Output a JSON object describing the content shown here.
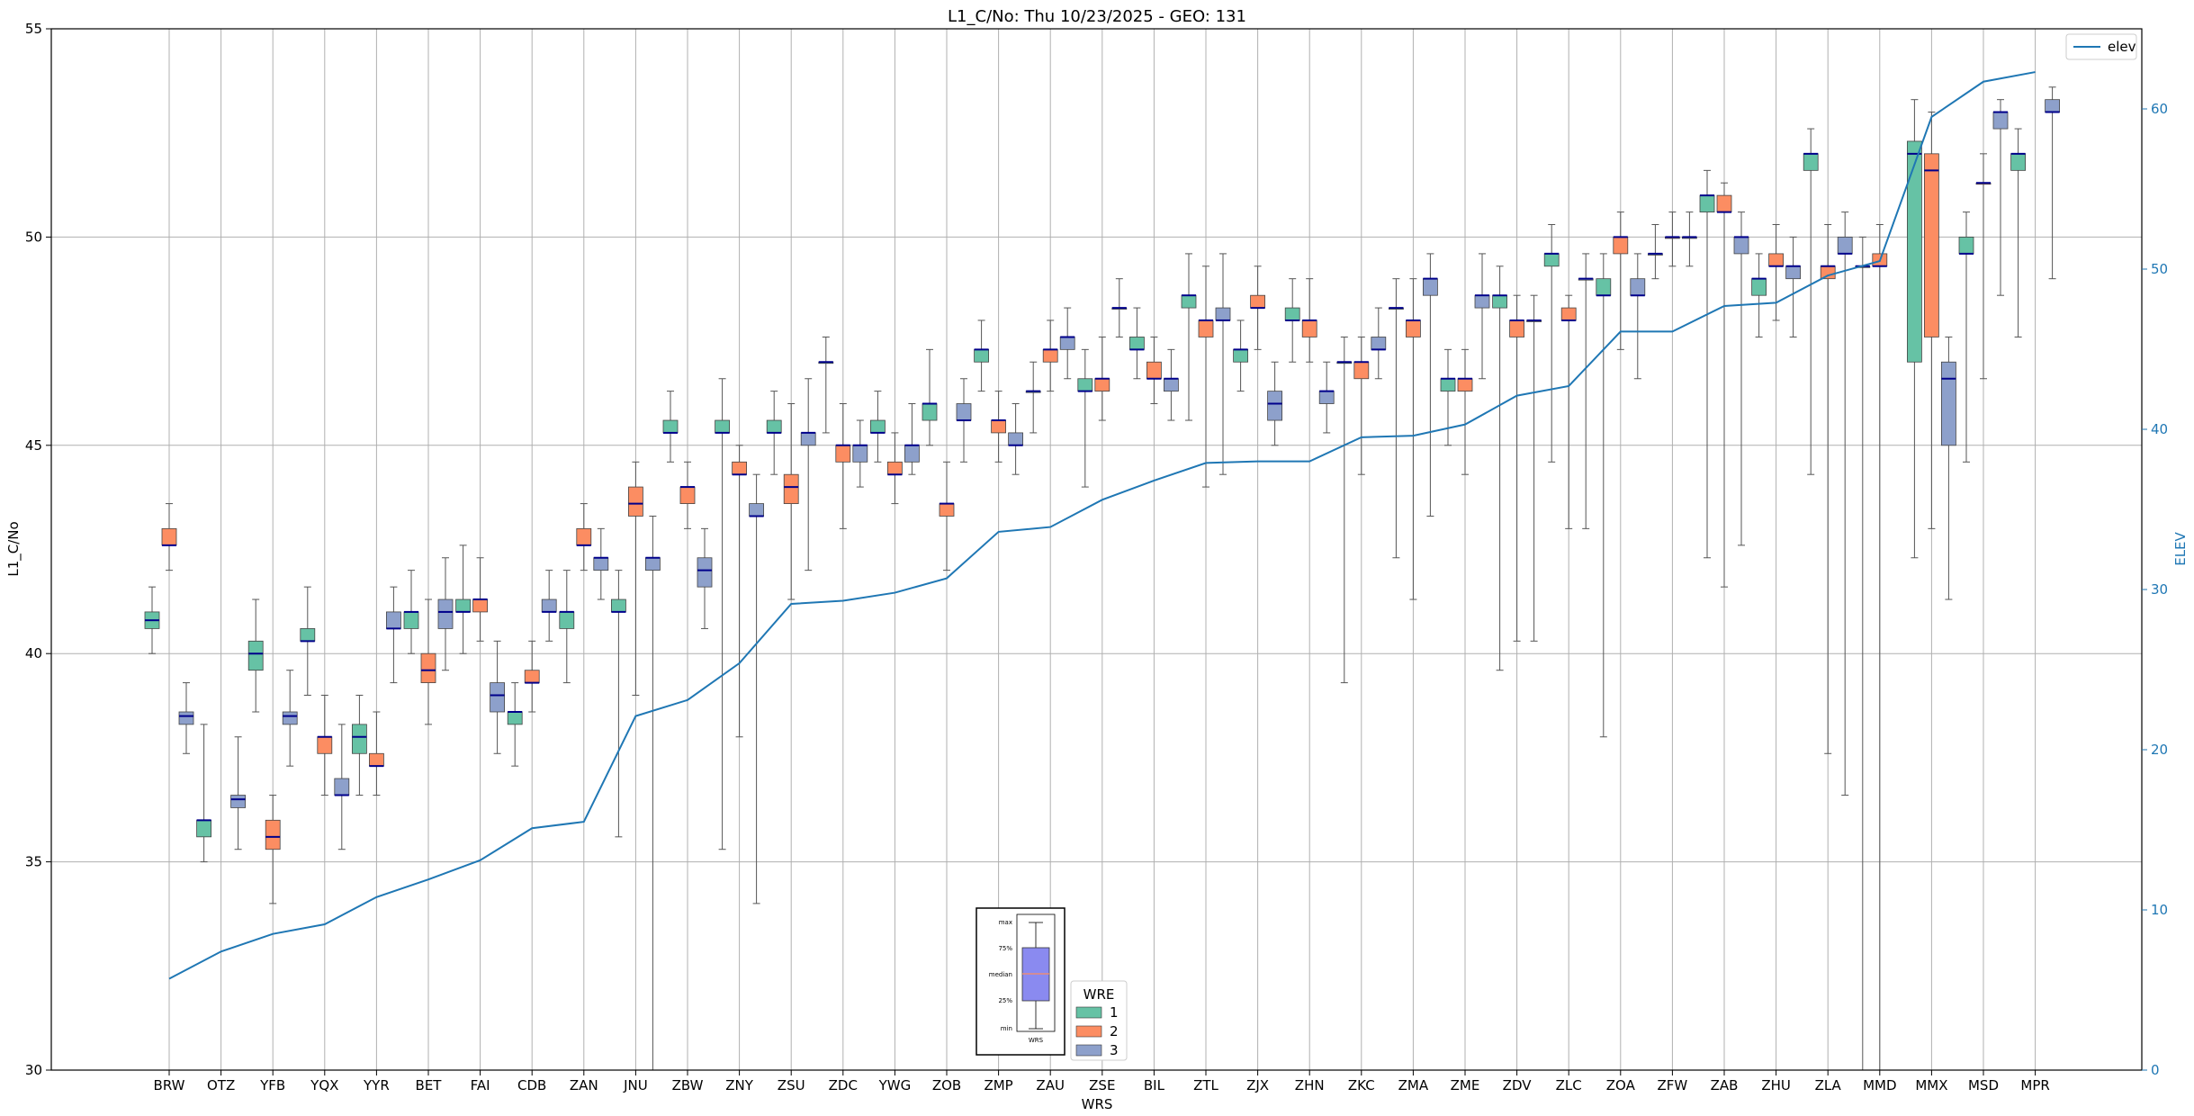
{
  "chart_data": {
    "type": "box",
    "title": "L1_C/No: Thu 10/23/2025 - GEO: 131",
    "xlabel": "WRS",
    "ylabel": "L1_C/No",
    "y2label": "ELEV",
    "ylim": [
      30,
      55
    ],
    "y2lim": [
      0,
      65
    ],
    "yticks": [
      30,
      35,
      40,
      45,
      50,
      55
    ],
    "y2ticks": [
      0,
      10,
      20,
      30,
      40,
      50,
      60
    ],
    "grid": true,
    "colors": {
      "wre1": "#66c2a5",
      "wre2": "#fc8d62",
      "wre3": "#8da0cb",
      "median": "#00008b",
      "elev_line": "#1f77b4",
      "whisker": "#555555",
      "grid": "#b0b0b0"
    },
    "legend_elev": {
      "position": "top-right",
      "label": "elev"
    },
    "legend_wre": {
      "position": "bottom-center",
      "title": "WRE",
      "labels": [
        "1",
        "2",
        "3"
      ]
    },
    "key_box": {
      "labels": [
        "max",
        "75%",
        "median",
        "25%",
        "min"
      ],
      "caption": "WRS"
    },
    "stations": [
      "BRW",
      "OTZ",
      "YFB",
      "YQX",
      "YYR",
      "BET",
      "FAI",
      "CDB",
      "ZAN",
      "JNU",
      "ZBW",
      "ZNY",
      "ZSU",
      "ZDC",
      "YWG",
      "ZOB",
      "ZMP",
      "ZAU",
      "ZSE",
      "BIL",
      "ZTL",
      "ZJX",
      "ZHN",
      "ZKC",
      "ZMA",
      "ZME",
      "ZDV",
      "ZLC",
      "ZOA",
      "ZFW",
      "ZAB",
      "ZHU",
      "ZLA",
      "MMD",
      "MMX",
      "MSD",
      "MPR"
    ],
    "elev": [
      5.7,
      7.4,
      8.5,
      9.1,
      10.8,
      11.9,
      13.1,
      15.1,
      15.5,
      22.1,
      23.1,
      25.4,
      29.1,
      29.3,
      29.8,
      30.7,
      33.6,
      33.9,
      35.6,
      36.8,
      37.9,
      38.0,
      38.0,
      39.5,
      39.6,
      40.3,
      42.1,
      42.7,
      46.1,
      46.1,
      47.7,
      47.9,
      49.6,
      50.5,
      59.5,
      61.7,
      62.3
    ],
    "boxes": [
      {
        "station": "BRW",
        "wre": 1,
        "min": 40.0,
        "q1": 40.6,
        "med": 40.8,
        "q3": 41.0,
        "max": 41.6
      },
      {
        "station": "BRW",
        "wre": 2,
        "min": 42.0,
        "q1": 42.6,
        "med": 42.6,
        "q3": 43.0,
        "max": 43.6
      },
      {
        "station": "BRW",
        "wre": 3,
        "min": 37.6,
        "q1": 38.3,
        "med": 38.5,
        "q3": 38.6,
        "max": 39.3
      },
      {
        "station": "OTZ",
        "wre": 1,
        "min": 35.0,
        "q1": 35.6,
        "med": 36.0,
        "q3": 36.0,
        "max": 38.3
      },
      {
        "station": "OTZ",
        "wre": 3,
        "min": 35.3,
        "q1": 36.3,
        "med": 36.5,
        "q3": 36.6,
        "max": 38.0
      },
      {
        "station": "YFB",
        "wre": 1,
        "min": 38.6,
        "q1": 39.6,
        "med": 40.0,
        "q3": 40.3,
        "max": 41.3
      },
      {
        "station": "YFB",
        "wre": 2,
        "min": 34.0,
        "q1": 35.3,
        "med": 35.6,
        "q3": 36.0,
        "max": 36.6
      },
      {
        "station": "YFB",
        "wre": 3,
        "min": 37.3,
        "q1": 38.3,
        "med": 38.5,
        "q3": 38.6,
        "max": 39.6
      },
      {
        "station": "YQX",
        "wre": 1,
        "min": 39.0,
        "q1": 40.3,
        "med": 40.3,
        "q3": 40.6,
        "max": 41.6
      },
      {
        "station": "YQX",
        "wre": 2,
        "min": 36.6,
        "q1": 37.6,
        "med": 38.0,
        "q3": 38.0,
        "max": 39.0
      },
      {
        "station": "YQX",
        "wre": 3,
        "min": 35.3,
        "q1": 36.6,
        "med": 36.6,
        "q3": 37.0,
        "max": 38.3
      },
      {
        "station": "YYR",
        "wre": 1,
        "min": 36.6,
        "q1": 37.6,
        "med": 38.0,
        "q3": 38.3,
        "max": 39.0
      },
      {
        "station": "YYR",
        "wre": 2,
        "min": 36.6,
        "q1": 37.3,
        "med": 37.3,
        "q3": 37.6,
        "max": 38.6
      },
      {
        "station": "YYR",
        "wre": 3,
        "min": 39.3,
        "q1": 40.6,
        "med": 40.6,
        "q3": 41.0,
        "max": 41.6
      },
      {
        "station": "BET",
        "wre": 1,
        "min": 40.0,
        "q1": 40.6,
        "med": 41.0,
        "q3": 41.0,
        "max": 42.0
      },
      {
        "station": "BET",
        "wre": 2,
        "min": 38.3,
        "q1": 39.3,
        "med": 39.6,
        "q3": 40.0,
        "max": 41.3
      },
      {
        "station": "BET",
        "wre": 3,
        "min": 39.6,
        "q1": 40.6,
        "med": 41.0,
        "q3": 41.3,
        "max": 42.3
      },
      {
        "station": "FAI",
        "wre": 1,
        "min": 40.0,
        "q1": 41.0,
        "med": 41.0,
        "q3": 41.3,
        "max": 42.6
      },
      {
        "station": "FAI",
        "wre": 2,
        "min": 40.3,
        "q1": 41.0,
        "med": 41.3,
        "q3": 41.3,
        "max": 42.3
      },
      {
        "station": "FAI",
        "wre": 3,
        "min": 37.6,
        "q1": 38.6,
        "med": 39.0,
        "q3": 39.3,
        "max": 40.3
      },
      {
        "station": "CDB",
        "wre": 1,
        "min": 37.3,
        "q1": 38.3,
        "med": 38.6,
        "q3": 38.6,
        "max": 39.3
      },
      {
        "station": "CDB",
        "wre": 2,
        "min": 38.6,
        "q1": 39.3,
        "med": 39.3,
        "q3": 39.6,
        "max": 40.3
      },
      {
        "station": "CDB",
        "wre": 3,
        "min": 40.3,
        "q1": 41.0,
        "med": 41.0,
        "q3": 41.3,
        "max": 42.0
      },
      {
        "station": "ZAN",
        "wre": 1,
        "min": 39.3,
        "q1": 40.6,
        "med": 41.0,
        "q3": 41.0,
        "max": 42.0
      },
      {
        "station": "ZAN",
        "wre": 2,
        "min": 42.0,
        "q1": 42.6,
        "med": 42.6,
        "q3": 43.0,
        "max": 43.6
      },
      {
        "station": "ZAN",
        "wre": 3,
        "min": 41.3,
        "q1": 42.0,
        "med": 42.3,
        "q3": 42.3,
        "max": 43.0
      },
      {
        "station": "JNU",
        "wre": 1,
        "min": 35.6,
        "q1": 41.0,
        "med": 41.0,
        "q3": 41.3,
        "max": 42.0
      },
      {
        "station": "JNU",
        "wre": 2,
        "min": 39.0,
        "q1": 43.3,
        "med": 43.6,
        "q3": 44.0,
        "max": 44.6
      },
      {
        "station": "JNU",
        "wre": 3,
        "min": 30.0,
        "q1": 42.0,
        "med": 42.3,
        "q3": 42.3,
        "max": 43.3
      },
      {
        "station": "ZBW",
        "wre": 1,
        "min": 44.6,
        "q1": 45.3,
        "med": 45.3,
        "q3": 45.6,
        "max": 46.3
      },
      {
        "station": "ZBW",
        "wre": 2,
        "min": 43.0,
        "q1": 43.6,
        "med": 44.0,
        "q3": 44.0,
        "max": 44.6
      },
      {
        "station": "ZBW",
        "wre": 3,
        "min": 40.6,
        "q1": 41.6,
        "med": 42.0,
        "q3": 42.3,
        "max": 43.0
      },
      {
        "station": "ZNY",
        "wre": 1,
        "min": 35.3,
        "q1": 45.3,
        "med": 45.3,
        "q3": 45.6,
        "max": 46.6
      },
      {
        "station": "ZNY",
        "wre": 2,
        "min": 38.0,
        "q1": 44.3,
        "med": 44.3,
        "q3": 44.6,
        "max": 45.0
      },
      {
        "station": "ZNY",
        "wre": 3,
        "min": 34.0,
        "q1": 43.3,
        "med": 43.3,
        "q3": 43.6,
        "max": 44.3
      },
      {
        "station": "ZSU",
        "wre": 1,
        "min": 44.3,
        "q1": 45.3,
        "med": 45.3,
        "q3": 45.6,
        "max": 46.3
      },
      {
        "station": "ZSU",
        "wre": 2,
        "min": 41.3,
        "q1": 43.6,
        "med": 44.0,
        "q3": 44.3,
        "max": 46.0
      },
      {
        "station": "ZSU",
        "wre": 3,
        "min": 42.0,
        "q1": 45.0,
        "med": 45.3,
        "q3": 45.3,
        "max": 46.6
      },
      {
        "station": "ZDC",
        "wre": 1,
        "min": 45.3,
        "q1": 47.0,
        "med": 47.0,
        "q3": 47.0,
        "max": 47.6
      },
      {
        "station": "ZDC",
        "wre": 2,
        "min": 43.0,
        "q1": 44.6,
        "med": 45.0,
        "q3": 45.0,
        "max": 46.0
      },
      {
        "station": "ZDC",
        "wre": 3,
        "min": 44.0,
        "q1": 44.6,
        "med": 45.0,
        "q3": 45.0,
        "max": 45.6
      },
      {
        "station": "YWG",
        "wre": 1,
        "min": 44.6,
        "q1": 45.3,
        "med": 45.3,
        "q3": 45.6,
        "max": 46.3
      },
      {
        "station": "YWG",
        "wre": 2,
        "min": 43.6,
        "q1": 44.3,
        "med": 44.3,
        "q3": 44.6,
        "max": 45.3
      },
      {
        "station": "YWG",
        "wre": 3,
        "min": 44.3,
        "q1": 44.6,
        "med": 45.0,
        "q3": 45.0,
        "max": 46.0
      },
      {
        "station": "ZOB",
        "wre": 1,
        "min": 45.0,
        "q1": 45.6,
        "med": 46.0,
        "q3": 46.0,
        "max": 47.3
      },
      {
        "station": "ZOB",
        "wre": 2,
        "min": 42.0,
        "q1": 43.3,
        "med": 43.6,
        "q3": 43.6,
        "max": 44.6
      },
      {
        "station": "ZOB",
        "wre": 3,
        "min": 44.6,
        "q1": 45.6,
        "med": 45.6,
        "q3": 46.0,
        "max": 46.6
      },
      {
        "station": "ZMP",
        "wre": 1,
        "min": 46.3,
        "q1": 47.0,
        "med": 47.3,
        "q3": 47.3,
        "max": 48.0
      },
      {
        "station": "ZMP",
        "wre": 2,
        "min": 44.6,
        "q1": 45.3,
        "med": 45.6,
        "q3": 45.6,
        "max": 46.3
      },
      {
        "station": "ZMP",
        "wre": 3,
        "min": 44.3,
        "q1": 45.0,
        "med": 45.0,
        "q3": 45.3,
        "max": 46.0
      },
      {
        "station": "ZAU",
        "wre": 1,
        "min": 45.3,
        "q1": 46.3,
        "med": 46.3,
        "q3": 46.3,
        "max": 47.0
      },
      {
        "station": "ZAU",
        "wre": 2,
        "min": 46.3,
        "q1": 47.0,
        "med": 47.3,
        "q3": 47.3,
        "max": 48.0
      },
      {
        "station": "ZAU",
        "wre": 3,
        "min": 46.6,
        "q1": 47.3,
        "med": 47.6,
        "q3": 47.6,
        "max": 48.3
      },
      {
        "station": "ZSE",
        "wre": 1,
        "min": 44.0,
        "q1": 46.3,
        "med": 46.3,
        "q3": 46.6,
        "max": 47.3
      },
      {
        "station": "ZSE",
        "wre": 2,
        "min": 45.6,
        "q1": 46.3,
        "med": 46.6,
        "q3": 46.6,
        "max": 47.6
      },
      {
        "station": "ZSE",
        "wre": 3,
        "min": 47.6,
        "q1": 48.3,
        "med": 48.3,
        "q3": 48.3,
        "max": 49.0
      },
      {
        "station": "BIL",
        "wre": 1,
        "min": 46.6,
        "q1": 47.3,
        "med": 47.3,
        "q3": 47.6,
        "max": 48.3
      },
      {
        "station": "BIL",
        "wre": 2,
        "min": 46.0,
        "q1": 46.6,
        "med": 46.6,
        "q3": 47.0,
        "max": 47.6
      },
      {
        "station": "BIL",
        "wre": 3,
        "min": 45.6,
        "q1": 46.3,
        "med": 46.6,
        "q3": 46.6,
        "max": 47.3
      },
      {
        "station": "ZTL",
        "wre": 1,
        "min": 45.6,
        "q1": 48.3,
        "med": 48.6,
        "q3": 48.6,
        "max": 49.6
      },
      {
        "station": "ZTL",
        "wre": 2,
        "min": 44.0,
        "q1": 47.6,
        "med": 48.0,
        "q3": 48.0,
        "max": 49.3
      },
      {
        "station": "ZTL",
        "wre": 3,
        "min": 44.3,
        "q1": 48.0,
        "med": 48.0,
        "q3": 48.3,
        "max": 49.6
      },
      {
        "station": "ZJX",
        "wre": 1,
        "min": 46.3,
        "q1": 47.0,
        "med": 47.3,
        "q3": 47.3,
        "max": 48.0
      },
      {
        "station": "ZJX",
        "wre": 2,
        "min": 47.3,
        "q1": 48.3,
        "med": 48.3,
        "q3": 48.6,
        "max": 49.3
      },
      {
        "station": "ZJX",
        "wre": 3,
        "min": 45.0,
        "q1": 45.6,
        "med": 46.0,
        "q3": 46.3,
        "max": 47.0
      },
      {
        "station": "ZHN",
        "wre": 1,
        "min": 47.0,
        "q1": 48.0,
        "med": 48.0,
        "q3": 48.3,
        "max": 49.0
      },
      {
        "station": "ZHN",
        "wre": 2,
        "min": 47.0,
        "q1": 47.6,
        "med": 48.0,
        "q3": 48.0,
        "max": 49.0
      },
      {
        "station": "ZHN",
        "wre": 3,
        "min": 45.3,
        "q1": 46.0,
        "med": 46.3,
        "q3": 46.3,
        "max": 47.0
      },
      {
        "station": "ZKC",
        "wre": 1,
        "min": 39.3,
        "q1": 47.0,
        "med": 47.0,
        "q3": 47.0,
        "max": 47.6
      },
      {
        "station": "ZKC",
        "wre": 2,
        "min": 44.3,
        "q1": 46.6,
        "med": 47.0,
        "q3": 47.0,
        "max": 47.6
      },
      {
        "station": "ZKC",
        "wre": 3,
        "min": 46.6,
        "q1": 47.3,
        "med": 47.3,
        "q3": 47.6,
        "max": 48.3
      },
      {
        "station": "ZMA",
        "wre": 1,
        "min": 42.3,
        "q1": 48.3,
        "med": 48.3,
        "q3": 48.3,
        "max": 49.0
      },
      {
        "station": "ZMA",
        "wre": 2,
        "min": 41.3,
        "q1": 47.6,
        "med": 48.0,
        "q3": 48.0,
        "max": 49.0
      },
      {
        "station": "ZMA",
        "wre": 3,
        "min": 43.3,
        "q1": 48.6,
        "med": 49.0,
        "q3": 49.0,
        "max": 49.6
      },
      {
        "station": "ZME",
        "wre": 1,
        "min": 45.0,
        "q1": 46.3,
        "med": 46.6,
        "q3": 46.6,
        "max": 47.3
      },
      {
        "station": "ZME",
        "wre": 2,
        "min": 44.3,
        "q1": 46.3,
        "med": 46.6,
        "q3": 46.6,
        "max": 47.3
      },
      {
        "station": "ZME",
        "wre": 3,
        "min": 46.6,
        "q1": 48.3,
        "med": 48.6,
        "q3": 48.6,
        "max": 49.6
      },
      {
        "station": "ZDV",
        "wre": 1,
        "min": 39.6,
        "q1": 48.3,
        "med": 48.6,
        "q3": 48.6,
        "max": 49.3
      },
      {
        "station": "ZDV",
        "wre": 2,
        "min": 40.3,
        "q1": 47.6,
        "med": 48.0,
        "q3": 48.0,
        "max": 48.6
      },
      {
        "station": "ZDV",
        "wre": 3,
        "min": 40.3,
        "q1": 48.0,
        "med": 48.0,
        "q3": 48.0,
        "max": 48.6
      },
      {
        "station": "ZLC",
        "wre": 1,
        "min": 44.6,
        "q1": 49.3,
        "med": 49.6,
        "q3": 49.6,
        "max": 50.3
      },
      {
        "station": "ZLC",
        "wre": 2,
        "min": 43.0,
        "q1": 48.0,
        "med": 48.0,
        "q3": 48.3,
        "max": 48.6
      },
      {
        "station": "ZLC",
        "wre": 3,
        "min": 43.0,
        "q1": 49.0,
        "med": 49.0,
        "q3": 49.0,
        "max": 49.6
      },
      {
        "station": "ZOA",
        "wre": 1,
        "min": 38.0,
        "q1": 48.6,
        "med": 48.6,
        "q3": 49.0,
        "max": 49.6
      },
      {
        "station": "ZOA",
        "wre": 2,
        "min": 47.3,
        "q1": 49.6,
        "med": 50.0,
        "q3": 50.0,
        "max": 50.6
      },
      {
        "station": "ZOA",
        "wre": 3,
        "min": 46.6,
        "q1": 48.6,
        "med": 48.6,
        "q3": 49.0,
        "max": 49.6
      },
      {
        "station": "ZFW",
        "wre": 1,
        "min": 49.0,
        "q1": 49.6,
        "med": 49.6,
        "q3": 49.6,
        "max": 50.3
      },
      {
        "station": "ZFW",
        "wre": 2,
        "min": 49.3,
        "q1": 50.0,
        "med": 50.0,
        "q3": 50.0,
        "max": 50.6
      },
      {
        "station": "ZFW",
        "wre": 3,
        "min": 49.3,
        "q1": 50.0,
        "med": 50.0,
        "q3": 50.0,
        "max": 50.6
      },
      {
        "station": "ZAB",
        "wre": 1,
        "min": 42.3,
        "q1": 50.6,
        "med": 51.0,
        "q3": 51.0,
        "max": 51.6
      },
      {
        "station": "ZAB",
        "wre": 2,
        "min": 41.6,
        "q1": 50.6,
        "med": 50.6,
        "q3": 51.0,
        "max": 51.3
      },
      {
        "station": "ZAB",
        "wre": 3,
        "min": 42.6,
        "q1": 49.6,
        "med": 50.0,
        "q3": 50.0,
        "max": 50.6
      },
      {
        "station": "ZHU",
        "wre": 1,
        "min": 47.6,
        "q1": 48.6,
        "med": 49.0,
        "q3": 49.0,
        "max": 49.6
      },
      {
        "station": "ZHU",
        "wre": 2,
        "min": 48.0,
        "q1": 49.3,
        "med": 49.3,
        "q3": 49.6,
        "max": 50.3
      },
      {
        "station": "ZHU",
        "wre": 3,
        "min": 47.6,
        "q1": 49.0,
        "med": 49.3,
        "q3": 49.3,
        "max": 50.0
      },
      {
        "station": "ZLA",
        "wre": 1,
        "min": 44.3,
        "q1": 51.6,
        "med": 52.0,
        "q3": 52.0,
        "max": 52.6
      },
      {
        "station": "ZLA",
        "wre": 2,
        "min": 37.6,
        "q1": 49.0,
        "med": 49.3,
        "q3": 49.3,
        "max": 50.3
      },
      {
        "station": "ZLA",
        "wre": 3,
        "min": 36.6,
        "q1": 49.6,
        "med": 49.6,
        "q3": 50.0,
        "max": 50.6
      },
      {
        "station": "MMD",
        "wre": 1,
        "min": 30.0,
        "q1": 49.3,
        "med": 49.3,
        "q3": 49.3,
        "max": 50.0
      },
      {
        "station": "MMD",
        "wre": 2,
        "min": 30.0,
        "q1": 49.3,
        "med": 49.3,
        "q3": 49.6,
        "max": 50.3
      },
      {
        "station": "MMX",
        "wre": 1,
        "min": 42.3,
        "q1": 47.0,
        "med": 52.0,
        "q3": 52.3,
        "max": 53.3
      },
      {
        "station": "MMX",
        "wre": 2,
        "min": 43.0,
        "q1": 47.6,
        "med": 51.6,
        "q3": 52.0,
        "max": 53.0
      },
      {
        "station": "MMX",
        "wre": 3,
        "min": 41.3,
        "q1": 45.0,
        "med": 46.6,
        "q3": 47.0,
        "max": 47.6
      },
      {
        "station": "MSD",
        "wre": 1,
        "min": 44.6,
        "q1": 49.6,
        "med": 49.6,
        "q3": 50.0,
        "max": 50.6
      },
      {
        "station": "MSD",
        "wre": 2,
        "min": 46.6,
        "q1": 51.3,
        "med": 51.3,
        "q3": 51.3,
        "max": 52.0
      },
      {
        "station": "MSD",
        "wre": 3,
        "min": 48.6,
        "q1": 52.6,
        "med": 53.0,
        "q3": 53.0,
        "max": 53.3
      },
      {
        "station": "MPR",
        "wre": 1,
        "min": 47.6,
        "q1": 51.6,
        "med": 52.0,
        "q3": 52.0,
        "max": 52.6
      },
      {
        "station": "MPR",
        "wre": 3,
        "min": 49.0,
        "q1": 53.0,
        "med": 53.0,
        "q3": 53.3,
        "max": 53.6
      }
    ]
  }
}
